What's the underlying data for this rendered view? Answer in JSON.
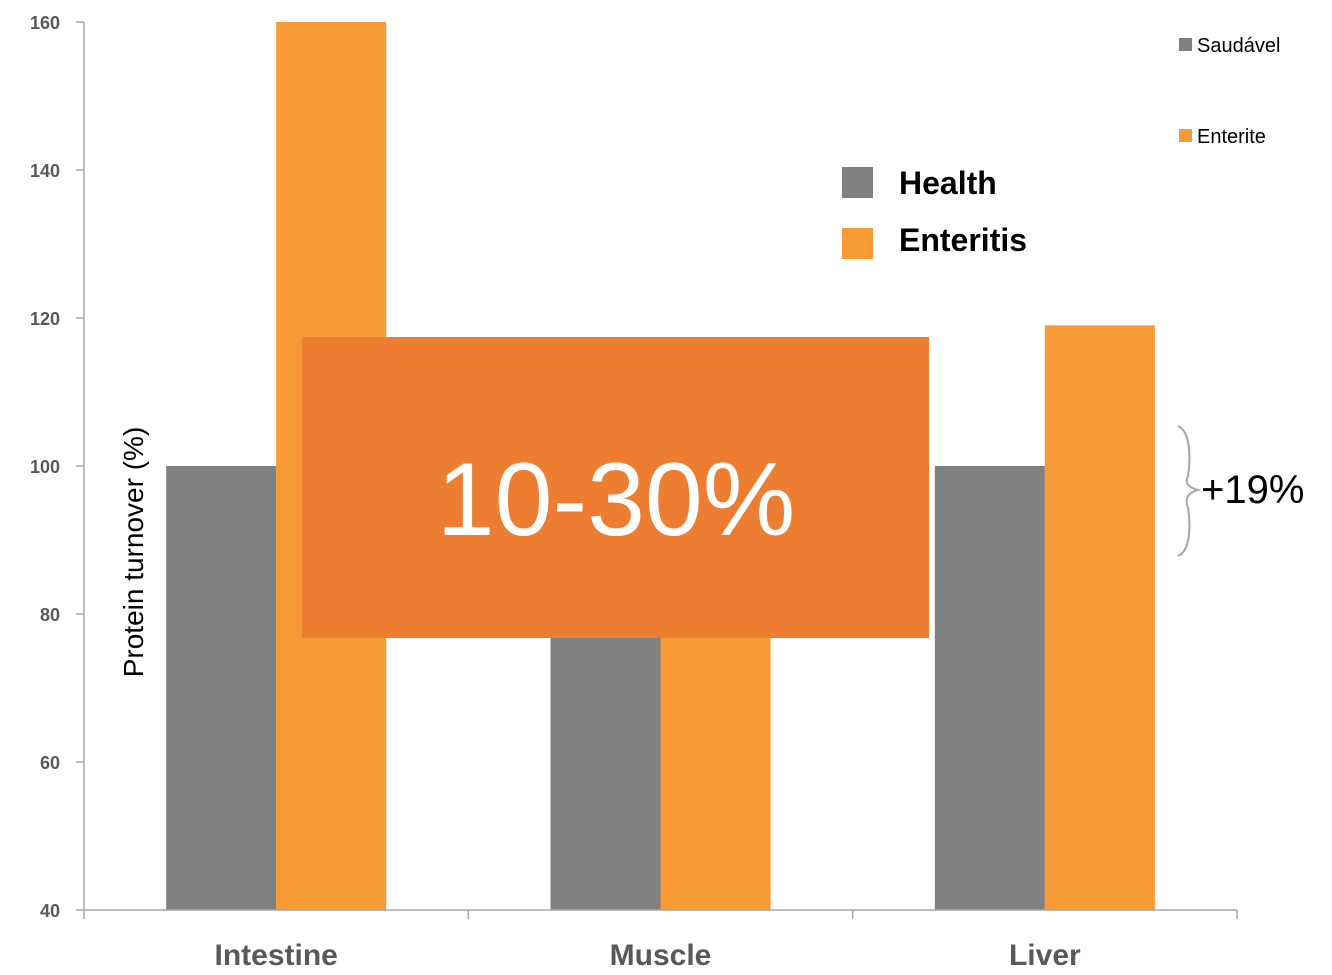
{
  "chart_data": {
    "type": "bar",
    "ylabel": "Protein turnover (%)",
    "xlabel": "",
    "ylim": [
      40,
      160
    ],
    "yticks": [
      40,
      60,
      80,
      100,
      120,
      140,
      160
    ],
    "categories": [
      "Intestine",
      "Muscle",
      "Liver"
    ],
    "series": [
      {
        "name": "Saudável",
        "color": "#808080",
        "values": [
          100,
          80,
          100
        ]
      },
      {
        "name": "Enterite",
        "color": "#F79935",
        "values": [
          160,
          80,
          119
        ]
      }
    ],
    "legend_placement": "top-right",
    "grid": false
  },
  "overlay_legend": {
    "items": [
      {
        "label": "Health",
        "color": "#808080"
      },
      {
        "label": "Enteritis",
        "color": "#F79935"
      }
    ]
  },
  "callout": {
    "text": "10-30%",
    "color": "#ED7D31"
  },
  "annotation": {
    "text": "+19%"
  }
}
